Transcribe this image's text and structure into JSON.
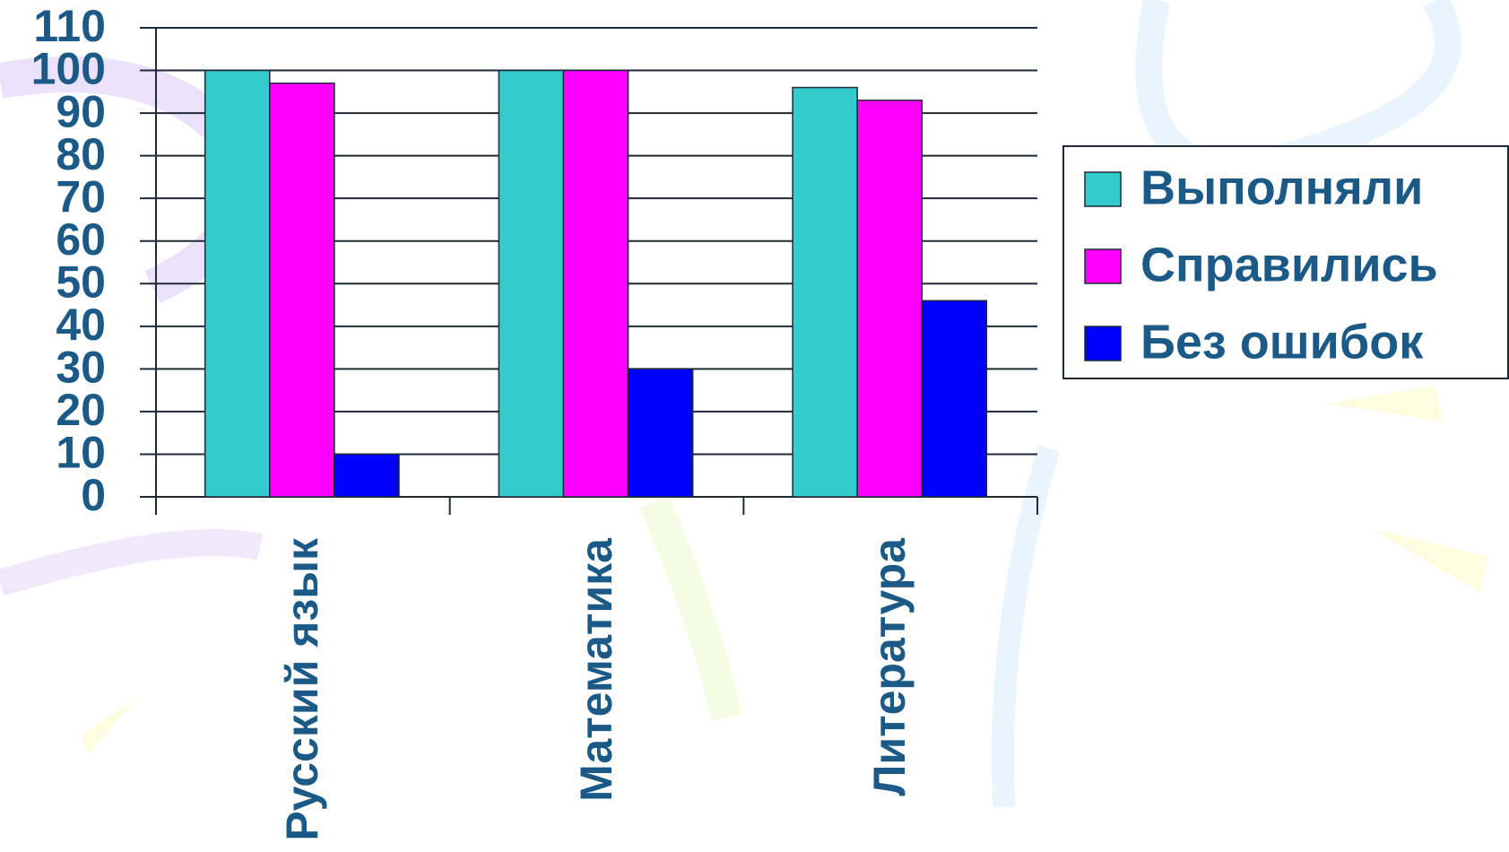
{
  "chart_data": {
    "type": "bar",
    "categories": [
      "Русский язык",
      "Математика",
      "Литература"
    ],
    "series": [
      {
        "name": "Выполняли",
        "color": "#33cccc",
        "values": [
          100,
          100,
          96
        ]
      },
      {
        "name": "Справились",
        "color": "#ff00ff",
        "values": [
          97,
          100,
          93
        ]
      },
      {
        "name": "Без ошибок",
        "color": "#0000ff",
        "values": [
          10,
          30,
          46
        ]
      }
    ],
    "ylim": [
      0,
      110
    ],
    "yticks": [
      0,
      10,
      20,
      30,
      40,
      50,
      60,
      70,
      80,
      90,
      100,
      110
    ],
    "grid": true,
    "legend": "right"
  }
}
